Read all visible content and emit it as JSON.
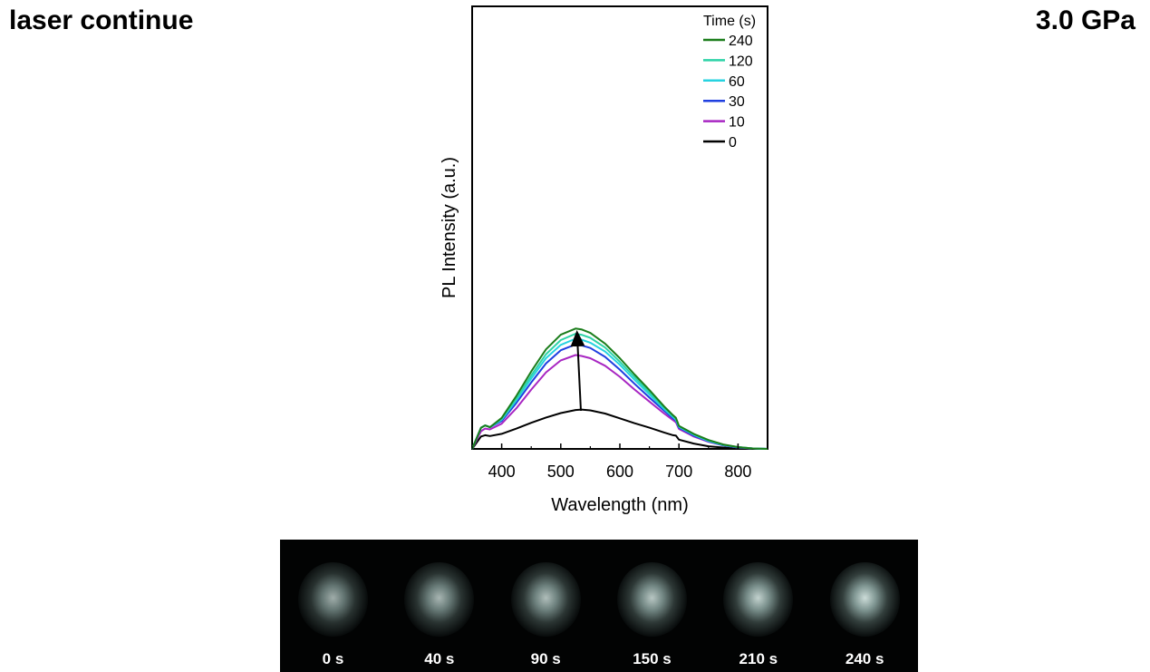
{
  "header": {
    "left_title": "laser continue",
    "right_title": "3.0 GPa"
  },
  "chart_data": {
    "type": "line",
    "title": "",
    "xlabel": "Wavelength (nm)",
    "ylabel": "PL Intensity (a.u.)",
    "xlim": [
      350,
      850
    ],
    "ylim": [
      0,
      100
    ],
    "x_ticks": [
      400,
      500,
      600,
      700,
      800
    ],
    "y_ticks_shown": false,
    "legend": {
      "title": "Time (s)",
      "placement": "top-right"
    },
    "annotation": "arrow indicating increasing intensity from 0 s to 240 s near the peak",
    "x": [
      350,
      365,
      372,
      380,
      400,
      425,
      450,
      475,
      500,
      525,
      535,
      550,
      575,
      600,
      625,
      650,
      675,
      690,
      695,
      700,
      725,
      750,
      775,
      800,
      825,
      850
    ],
    "series": [
      {
        "name": "240",
        "color": "#1b7d1b",
        "values": [
          0,
          4.8,
          5.3,
          4.9,
          7.0,
          12.0,
          17.5,
          22.5,
          25.8,
          27.2,
          27.0,
          26.2,
          23.8,
          20.5,
          16.8,
          13.3,
          9.6,
          7.6,
          7.0,
          5.2,
          3.4,
          2.0,
          1.0,
          0.4,
          0.1,
          0
        ]
      },
      {
        "name": "120",
        "color": "#2ed3a7",
        "values": [
          0,
          4.8,
          5.3,
          4.9,
          6.8,
          11.4,
          16.6,
          21.4,
          24.6,
          26.0,
          25.8,
          25.1,
          22.9,
          19.7,
          16.2,
          12.8,
          9.3,
          7.4,
          6.8,
          5.1,
          3.3,
          1.9,
          0.9,
          0.4,
          0.1,
          0
        ]
      },
      {
        "name": "60",
        "color": "#27d3e0",
        "values": [
          0,
          4.8,
          5.3,
          4.9,
          6.6,
          11.0,
          15.9,
          20.5,
          23.5,
          24.9,
          24.7,
          24.0,
          22.0,
          19.0,
          15.6,
          12.3,
          9.0,
          7.2,
          6.6,
          5.0,
          3.2,
          1.8,
          0.9,
          0.4,
          0.1,
          0
        ]
      },
      {
        "name": "30",
        "color": "#1f3fe0",
        "values": [
          0,
          4.8,
          5.3,
          4.9,
          6.3,
          10.4,
          15.0,
          19.3,
          22.3,
          23.6,
          23.4,
          22.8,
          20.8,
          17.9,
          14.7,
          11.6,
          8.6,
          6.9,
          6.4,
          4.8,
          3.0,
          1.7,
          0.8,
          0.3,
          0.1,
          0
        ]
      },
      {
        "name": "10",
        "color": "#a826c2",
        "values": [
          0,
          4.0,
          4.6,
          4.4,
          5.7,
          9.2,
          13.4,
          17.3,
          20.0,
          21.2,
          21.0,
          20.5,
          18.8,
          16.3,
          13.4,
          10.7,
          8.0,
          6.5,
          6.0,
          4.5,
          2.8,
          1.6,
          0.8,
          0.3,
          0.1,
          0
        ]
      },
      {
        "name": "0",
        "color": "#000000",
        "values": [
          0,
          2.8,
          3.1,
          2.9,
          3.4,
          4.6,
          5.9,
          7.1,
          8.1,
          8.8,
          8.9,
          8.7,
          8.0,
          6.9,
          5.8,
          4.8,
          3.7,
          3.1,
          3.0,
          2.1,
          1.2,
          0.6,
          0.3,
          0.1,
          0,
          0
        ]
      }
    ]
  },
  "photo_strip": {
    "frames": [
      {
        "label": "0 s",
        "brightness": 0.78
      },
      {
        "label": "40 s",
        "brightness": 0.82
      },
      {
        "label": "90 s",
        "brightness": 0.86
      },
      {
        "label": "150 s",
        "brightness": 0.9
      },
      {
        "label": "210 s",
        "brightness": 0.95
      },
      {
        "label": "240 s",
        "brightness": 1.0
      }
    ]
  }
}
